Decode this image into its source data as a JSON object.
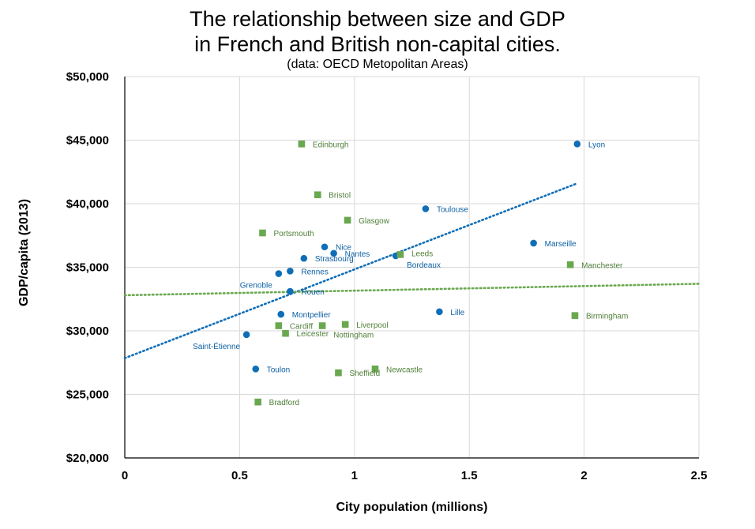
{
  "chart_data": {
    "type": "scatter",
    "title_line1": "The relationship between size and GDP",
    "title_line2": "in French and British non-capital cities.",
    "subtitle": "(data: OECD Metopolitan Areas)",
    "xlabel": "City population (millions)",
    "ylabel": "GDP/capita (2013)",
    "xlim": [
      0,
      2.5
    ],
    "ylim": [
      20000,
      50000
    ],
    "x_ticks": [
      0,
      0.5,
      1,
      1.5,
      2,
      2.5
    ],
    "x_tick_labels": [
      "0",
      "0.5",
      "1",
      "1.5",
      "2",
      "2.5"
    ],
    "y_ticks": [
      20000,
      25000,
      30000,
      35000,
      40000,
      45000,
      50000
    ],
    "y_tick_labels": [
      "$20,000",
      "$25,000",
      "$30,000",
      "$35,000",
      "$40,000",
      "$45,000",
      "$50,000"
    ],
    "grid": true,
    "series": [
      {
        "marker": "circle",
        "color": "#0f6eb8",
        "trendline": {
          "x": [
            0,
            1.97
          ],
          "y": [
            27850,
            41600
          ],
          "style": "dotted"
        },
        "points": [
          {
            "label": "Lyon",
            "x": 1.97,
            "y": 44700,
            "pos": "right"
          },
          {
            "label": "Toulouse",
            "x": 1.31,
            "y": 39600,
            "pos": "right"
          },
          {
            "label": "Marseille",
            "x": 1.78,
            "y": 36900,
            "pos": "right"
          },
          {
            "label": "Nice",
            "x": 0.87,
            "y": 36600,
            "pos": "right"
          },
          {
            "label": "Nantes",
            "x": 0.91,
            "y": 36100,
            "pos": "right"
          },
          {
            "label": "Bordeaux",
            "x": 1.18,
            "y": 35900,
            "pos": "belowright"
          },
          {
            "label": "Strasbourg",
            "x": 0.78,
            "y": 35700,
            "pos": "right"
          },
          {
            "label": "Rennes",
            "x": 0.72,
            "y": 34700,
            "pos": "right"
          },
          {
            "label": "Grenoble",
            "x": 0.67,
            "y": 34500,
            "pos": "belowleft"
          },
          {
            "label": "Rouen",
            "x": 0.72,
            "y": 33100,
            "pos": "right"
          },
          {
            "label": "Lille",
            "x": 1.37,
            "y": 31500,
            "pos": "right"
          },
          {
            "label": "Montpellier",
            "x": 0.68,
            "y": 31300,
            "pos": "right"
          },
          {
            "label": "Saint-Étienne",
            "x": 0.53,
            "y": 29700,
            "pos": "belowleft"
          },
          {
            "label": "Toulon",
            "x": 0.57,
            "y": 27000,
            "pos": "right"
          }
        ]
      },
      {
        "marker": "square",
        "color": "#6aa84f",
        "trendline": {
          "x": [
            0,
            2.5
          ],
          "y": [
            32800,
            33700
          ],
          "style": "dotted"
        },
        "points": [
          {
            "label": "Edinburgh",
            "x": 0.77,
            "y": 44700,
            "pos": "right"
          },
          {
            "label": "Bristol",
            "x": 0.84,
            "y": 40700,
            "pos": "right"
          },
          {
            "label": "Glasgow",
            "x": 0.97,
            "y": 38700,
            "pos": "right"
          },
          {
            "label": "Portsmouth",
            "x": 0.6,
            "y": 37700,
            "pos": "right"
          },
          {
            "label": "Leeds",
            "x": 1.2,
            "y": 36000,
            "pos": "aboveright"
          },
          {
            "label": "Manchester",
            "x": 1.94,
            "y": 35200,
            "pos": "right"
          },
          {
            "label": "Birmingham",
            "x": 1.96,
            "y": 31200,
            "pos": "right"
          },
          {
            "label": "Liverpool",
            "x": 0.96,
            "y": 30500,
            "pos": "right"
          },
          {
            "label": "Cardiff",
            "x": 0.67,
            "y": 30400,
            "pos": "right"
          },
          {
            "label": "Nottingham",
            "x": 0.86,
            "y": 30400,
            "pos": "belowright"
          },
          {
            "label": "Leicester",
            "x": 0.7,
            "y": 29800,
            "pos": "right"
          },
          {
            "label": "Newcastle",
            "x": 1.09,
            "y": 27000,
            "pos": "right"
          },
          {
            "label": "Sheffield",
            "x": 0.93,
            "y": 26700,
            "pos": "right"
          },
          {
            "label": "Bradford",
            "x": 0.58,
            "y": 24400,
            "pos": "right"
          }
        ]
      }
    ]
  }
}
